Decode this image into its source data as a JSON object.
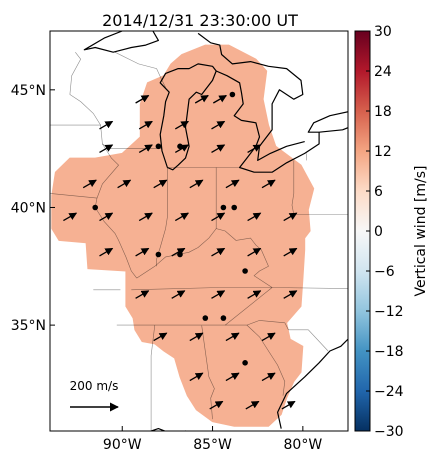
{
  "chart_data": {
    "type": "map",
    "title": "2014/12/31 23:30:00 UT",
    "lon_range": [
      -94.0,
      -77.5
    ],
    "lat_range": [
      30.5,
      47.5
    ],
    "lon_ticks": [
      -90,
      -85,
      -80
    ],
    "lon_tick_labels": [
      "90°W",
      "85°W",
      "80°W"
    ],
    "lat_ticks": [
      35,
      40,
      45
    ],
    "lat_tick_labels": [
      "35°N",
      "40°N",
      "45°N"
    ],
    "colorbar": {
      "label": "Vertical wind [m/s]",
      "min": -30,
      "max": 30,
      "ticks": [
        -30,
        -24,
        -18,
        -12,
        -6,
        0,
        6,
        12,
        18,
        24,
        30
      ],
      "tick_labels": [
        "−30",
        "−24",
        "−18",
        "−12",
        "−6",
        "0",
        "6",
        "12",
        "18",
        "24",
        "30"
      ],
      "colormap": "RdBu_r"
    },
    "field_value": 7,
    "field_color": "#f6b193",
    "quiver_key": {
      "label": "200 m/s",
      "value": 200
    },
    "arrow_direction_deg": 30,
    "arrows": [
      [
        -88.9,
        44.6
      ],
      [
        -85.6,
        44.6
      ],
      [
        -84.6,
        44.6
      ],
      [
        -90.9,
        43.5
      ],
      [
        -88.7,
        43.5
      ],
      [
        -86.7,
        43.5
      ],
      [
        -84.7,
        43.5
      ],
      [
        -90.9,
        42.5
      ],
      [
        -88.7,
        42.5
      ],
      [
        -86.7,
        42.5
      ],
      [
        -84.7,
        42.5
      ],
      [
        -82.7,
        42.5
      ],
      [
        -91.8,
        41.0
      ],
      [
        -89.9,
        41.0
      ],
      [
        -87.9,
        41.0
      ],
      [
        -85.9,
        41.0
      ],
      [
        -83.9,
        41.0
      ],
      [
        -81.9,
        41.0
      ],
      [
        -92.9,
        39.6
      ],
      [
        -90.9,
        39.6
      ],
      [
        -88.7,
        39.6
      ],
      [
        -86.7,
        39.6
      ],
      [
        -84.7,
        39.6
      ],
      [
        -82.7,
        39.6
      ],
      [
        -80.7,
        39.6
      ],
      [
        -90.9,
        38.1
      ],
      [
        -88.9,
        38.1
      ],
      [
        -86.9,
        38.1
      ],
      [
        -84.7,
        38.1
      ],
      [
        -82.7,
        38.1
      ],
      [
        -80.7,
        38.1
      ],
      [
        -88.9,
        36.3
      ],
      [
        -86.9,
        36.3
      ],
      [
        -84.7,
        36.3
      ],
      [
        -82.7,
        36.3
      ],
      [
        -80.7,
        36.3
      ],
      [
        -87.9,
        34.5
      ],
      [
        -85.9,
        34.5
      ],
      [
        -83.9,
        34.5
      ],
      [
        -81.9,
        34.5
      ],
      [
        -85.9,
        32.8
      ],
      [
        -83.9,
        32.8
      ],
      [
        -81.9,
        32.8
      ],
      [
        -84.8,
        31.6
      ],
      [
        -82.8,
        31.6
      ],
      [
        -80.8,
        31.6
      ]
    ],
    "stations": [
      [
        -83.9,
        44.8
      ],
      [
        -88.0,
        42.6
      ],
      [
        -86.8,
        42.6
      ],
      [
        -91.5,
        40.0
      ],
      [
        -84.4,
        40.0
      ],
      [
        -83.8,
        40.0
      ],
      [
        -88.0,
        38.0
      ],
      [
        -86.8,
        38.0
      ],
      [
        -83.2,
        37.3
      ],
      [
        -85.4,
        35.3
      ],
      [
        -84.4,
        35.3
      ],
      [
        -83.2,
        33.4
      ]
    ],
    "region": [
      [
        -92.9,
        42.1
      ],
      [
        -93.7,
        41.5
      ],
      [
        -93.9,
        40.5
      ],
      [
        -93.9,
        39.1
      ],
      [
        -93.5,
        38.6
      ],
      [
        -92.0,
        38.5
      ],
      [
        -91.9,
        37.4
      ],
      [
        -89.8,
        37.3
      ],
      [
        -89.8,
        35.8
      ],
      [
        -89.4,
        35.3
      ],
      [
        -89.3,
        34.8
      ],
      [
        -88.9,
        34.3
      ],
      [
        -88.2,
        34.2
      ],
      [
        -87.7,
        33.9
      ],
      [
        -87.1,
        33.6
      ],
      [
        -86.8,
        32.8
      ],
      [
        -86.4,
        32.0
      ],
      [
        -85.9,
        31.4
      ],
      [
        -85.0,
        30.9
      ],
      [
        -83.8,
        30.7
      ],
      [
        -81.9,
        30.7
      ],
      [
        -81.2,
        31.2
      ],
      [
        -80.9,
        31.9
      ],
      [
        -80.5,
        32.6
      ],
      [
        -80.1,
        33.0
      ],
      [
        -80.0,
        34.1
      ],
      [
        -80.7,
        34.4
      ],
      [
        -80.9,
        35.1
      ],
      [
        -80.1,
        35.8
      ],
      [
        -80.0,
        36.9
      ],
      [
        -79.9,
        38.2
      ],
      [
        -79.9,
        38.7
      ],
      [
        -79.6,
        39.0
      ],
      [
        -79.7,
        39.9
      ],
      [
        -79.4,
        40.8
      ],
      [
        -80.1,
        41.8
      ],
      [
        -81.5,
        42.6
      ],
      [
        -81.9,
        43.5
      ],
      [
        -82.2,
        44.6
      ],
      [
        -82.0,
        45.8
      ],
      [
        -82.6,
        46.3
      ],
      [
        -84.1,
        46.9
      ],
      [
        -85.4,
        46.9
      ],
      [
        -86.7,
        46.5
      ],
      [
        -87.3,
        46.1
      ],
      [
        -87.7,
        45.6
      ],
      [
        -88.6,
        45.3
      ],
      [
        -89.0,
        44.4
      ],
      [
        -89.0,
        43.0
      ],
      [
        -90.0,
        42.3
      ],
      [
        -91.5,
        42.1
      ]
    ],
    "coastlines": [
      [
        [
          -87.5,
          41.7
        ],
        [
          -87.8,
          42.4
        ],
        [
          -87.9,
          43.1
        ],
        [
          -87.7,
          43.9
        ],
        [
          -87.6,
          44.5
        ],
        [
          -87.4,
          44.9
        ],
        [
          -87.9,
          45.3
        ],
        [
          -87.6,
          45.7
        ],
        [
          -86.9,
          45.9
        ],
        [
          -86.3,
          45.9
        ],
        [
          -85.8,
          46.1
        ],
        [
          -85.0,
          46.0
        ],
        [
          -84.8,
          45.8
        ],
        [
          -85.0,
          45.4
        ],
        [
          -85.4,
          45.0
        ],
        [
          -85.6,
          44.8
        ],
        [
          -85.9,
          44.9
        ],
        [
          -86.3,
          44.6
        ],
        [
          -86.4,
          44.0
        ],
        [
          -86.5,
          43.4
        ],
        [
          -86.3,
          42.6
        ],
        [
          -86.5,
          42.1
        ],
        [
          -86.9,
          41.8
        ],
        [
          -87.2,
          41.6
        ],
        [
          -87.5,
          41.7
        ]
      ],
      [
        [
          -84.8,
          45.8
        ],
        [
          -84.2,
          45.6
        ],
        [
          -83.5,
          45.3
        ],
        [
          -83.4,
          44.9
        ],
        [
          -83.3,
          44.4
        ],
        [
          -83.8,
          43.9
        ],
        [
          -83.4,
          43.7
        ],
        [
          -82.6,
          43.6
        ],
        [
          -82.4,
          43.0
        ],
        [
          -82.6,
          42.6
        ],
        [
          -83.1,
          42.1
        ],
        [
          -83.5,
          41.7
        ],
        [
          -82.7,
          41.5
        ],
        [
          -81.7,
          41.5
        ],
        [
          -80.9,
          41.9
        ],
        [
          -79.9,
          42.3
        ],
        [
          -79.1,
          42.7
        ],
        [
          -79.1,
          43.2
        ]
      ],
      [
        [
          -79.1,
          43.2
        ],
        [
          -77.8,
          43.3
        ],
        [
          -76.8,
          43.6
        ],
        [
          -76.5,
          44.3
        ],
        [
          -77.3,
          44.1
        ],
        [
          -78.5,
          43.9
        ],
        [
          -79.4,
          43.6
        ],
        [
          -79.7,
          43.2
        ],
        [
          -79.1,
          43.2
        ]
      ],
      [
        [
          -79.9,
          42.8
        ],
        [
          -80.9,
          42.6
        ],
        [
          -81.8,
          42.3
        ],
        [
          -82.5,
          42.0
        ],
        [
          -82.4,
          42.6
        ],
        [
          -81.7,
          43.3
        ],
        [
          -81.7,
          44.4
        ],
        [
          -81.3,
          45.0
        ],
        [
          -80.5,
          44.6
        ],
        [
          -80.0,
          44.8
        ],
        [
          -80.1,
          45.4
        ],
        [
          -80.9,
          45.9
        ],
        [
          -81.9,
          46.0
        ],
        [
          -82.9,
          46.2
        ],
        [
          -83.9,
          46.1
        ],
        [
          -84.5,
          46.5
        ],
        [
          -84.6,
          46.9
        ],
        [
          -85.1,
          47.0
        ],
        [
          -85.8,
          47.4
        ]
      ],
      [
        [
          -88.3,
          47.5
        ],
        [
          -88.0,
          47.1
        ],
        [
          -88.7,
          46.9
        ],
        [
          -89.5,
          46.8
        ],
        [
          -90.5,
          46.6
        ],
        [
          -91.5,
          46.8
        ],
        [
          -92.1,
          46.7
        ],
        [
          -91.0,
          47.2
        ],
        [
          -90.0,
          47.5
        ]
      ],
      [
        [
          -81.2,
          30.6
        ],
        [
          -81.4,
          31.3
        ],
        [
          -80.9,
          32.1
        ],
        [
          -79.9,
          32.8
        ],
        [
          -79.1,
          33.4
        ],
        [
          -78.5,
          33.9
        ],
        [
          -77.9,
          34.1
        ],
        [
          -77.5,
          34.4
        ]
      ],
      [
        [
          -94.0,
          29.7
        ],
        [
          -93.0,
          29.8
        ],
        [
          -92.0,
          29.6
        ],
        [
          -91.0,
          29.3
        ],
        [
          -90.1,
          29.0
        ],
        [
          -89.4,
          29.2
        ],
        [
          -89.6,
          29.9
        ],
        [
          -88.8,
          30.4
        ],
        [
          -88.0,
          30.6
        ],
        [
          -87.3,
          30.4
        ],
        [
          -86.5,
          30.5
        ],
        [
          -85.6,
          30.0
        ],
        [
          -84.6,
          29.8
        ],
        [
          -83.9,
          30.0
        ],
        [
          -83.4,
          29.6
        ]
      ]
    ],
    "borders": [
      [
        [
          -92.6,
          46.6
        ],
        [
          -92.3,
          46.3
        ],
        [
          -92.8,
          45.6
        ],
        [
          -92.9,
          44.8
        ],
        [
          -92.3,
          44.5
        ],
        [
          -91.6,
          44.0
        ],
        [
          -91.2,
          43.5
        ],
        [
          -91.1,
          42.7
        ],
        [
          -90.7,
          42.5
        ],
        [
          -87.8,
          42.5
        ]
      ],
      [
        [
          -90.4,
          46.6
        ],
        [
          -89.1,
          46.1
        ],
        [
          -88.1,
          45.9
        ],
        [
          -87.8,
          45.4
        ],
        [
          -87.6,
          45.1
        ]
      ],
      [
        [
          -94.0,
          43.5
        ],
        [
          -91.2,
          43.5
        ]
      ],
      [
        [
          -91.1,
          42.7
        ],
        [
          -90.6,
          42.1
        ],
        [
          -90.2,
          41.8
        ],
        [
          -91.1,
          41.0
        ],
        [
          -91.4,
          40.4
        ],
        [
          -91.5,
          40.0
        ],
        [
          -91.0,
          39.4
        ],
        [
          -90.4,
          38.9
        ],
        [
          -90.2,
          38.6
        ],
        [
          -89.8,
          37.9
        ],
        [
          -89.5,
          37.3
        ],
        [
          -89.2,
          37.0
        ]
      ],
      [
        [
          -94.0,
          40.6
        ],
        [
          -91.4,
          40.4
        ]
      ],
      [
        [
          -87.5,
          41.7
        ],
        [
          -87.5,
          39.6
        ],
        [
          -87.6,
          39.1
        ],
        [
          -87.9,
          38.3
        ],
        [
          -88.1,
          37.8
        ],
        [
          -88.1,
          37.5
        ]
      ],
      [
        [
          -87.5,
          41.7
        ],
        [
          -84.8,
          41.7
        ],
        [
          -83.5,
          41.7
        ]
      ],
      [
        [
          -84.8,
          41.7
        ],
        [
          -84.8,
          39.1
        ]
      ],
      [
        [
          -89.2,
          37.0
        ],
        [
          -88.2,
          37.5
        ],
        [
          -87.6,
          37.9
        ],
        [
          -86.9,
          38.0
        ],
        [
          -86.3,
          38.1
        ],
        [
          -85.8,
          38.3
        ],
        [
          -85.2,
          38.7
        ],
        [
          -84.8,
          39.1
        ],
        [
          -84.3,
          39.0
        ],
        [
          -83.7,
          38.6
        ],
        [
          -82.9,
          38.7
        ],
        [
          -82.6,
          38.4
        ],
        [
          -82.3,
          38.2
        ],
        [
          -81.9,
          37.5
        ],
        [
          -82.4,
          37.3
        ],
        [
          -82.7,
          37.1
        ],
        [
          -81.7,
          36.6
        ]
      ],
      [
        [
          -80.5,
          42.0
        ],
        [
          -80.5,
          40.6
        ],
        [
          -80.6,
          40.1
        ],
        [
          -80.5,
          39.7
        ]
      ],
      [
        [
          -79.8,
          42.0
        ],
        [
          -79.8,
          42.3
        ]
      ],
      [
        [
          -80.5,
          39.7
        ],
        [
          -77.5,
          39.7
        ]
      ],
      [
        [
          -89.5,
          36.5
        ],
        [
          -84.6,
          36.6
        ],
        [
          -81.7,
          36.6
        ],
        [
          -77.5,
          36.55
        ]
      ],
      [
        [
          -84.3,
          35.0
        ],
        [
          -88.2,
          35.0
        ],
        [
          -90.3,
          35.0
        ]
      ],
      [
        [
          -85.6,
          34.98
        ],
        [
          -85.2,
          32.8
        ],
        [
          -84.9,
          32.3
        ],
        [
          -85.1,
          31.9
        ],
        [
          -85.0,
          31.0
        ]
      ],
      [
        [
          -88.2,
          35.0
        ],
        [
          -88.4,
          33.7
        ],
        [
          -88.4,
          31.9
        ],
        [
          -88.4,
          30.5
        ]
      ],
      [
        [
          -84.3,
          35.0
        ],
        [
          -83.1,
          35.0
        ],
        [
          -82.4,
          35.2
        ],
        [
          -81.0,
          35.1
        ],
        [
          -80.8,
          34.8
        ],
        [
          -79.7,
          34.8
        ],
        [
          -78.6,
          33.9
        ]
      ],
      [
        [
          -83.1,
          35.0
        ],
        [
          -82.4,
          34.5
        ],
        [
          -81.9,
          33.9
        ],
        [
          -81.4,
          33.3
        ],
        [
          -81.0,
          32.6
        ],
        [
          -81.1,
          32.0
        ]
      ],
      [
        [
          -91.6,
          36.5
        ],
        [
          -90.1,
          36.5
        ]
      ],
      [
        [
          -84.3,
          35.0
        ],
        [
          -81.7,
          36.6
        ]
      ]
    ]
  }
}
